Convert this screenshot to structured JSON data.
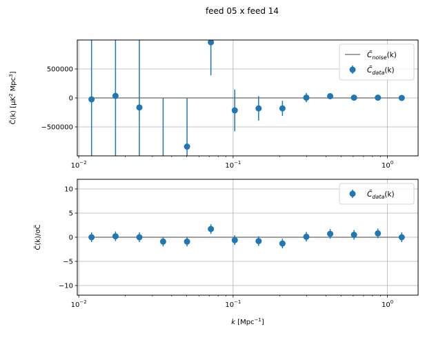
{
  "chart_data": [
    {
      "type": "scatter",
      "panel": "top",
      "title": "feed 05 x feed 14",
      "xlabel": "",
      "ylabel": "C̃(k) [μK² Mpc³]",
      "ylabel_parts": {
        "main": "C̃(k) [μK",
        "sup1": "2",
        "mid": " Mpc",
        "sup2": "3",
        "end": "]"
      },
      "xscale": "log",
      "xlim": [
        0.00978,
        1.58
      ],
      "ylim": [
        -1000000,
        1000000
      ],
      "grid": true,
      "yticks": [
        {
          "value": 500000,
          "label": "500000"
        },
        {
          "value": 0,
          "label": "0"
        },
        {
          "value": -500000,
          "label": "−500000"
        }
      ],
      "xticks": [
        {
          "value": 0.01,
          "base": "10",
          "exp": "−2"
        },
        {
          "value": 0.1,
          "base": "10",
          "exp": "−1"
        },
        {
          "value": 1,
          "base": "10",
          "exp": "0"
        }
      ],
      "legend": {
        "placement": "top-right",
        "entries": [
          {
            "name": "C̃noise(k)",
            "main": "C̃",
            "sub": "noise",
            "tail": "(k)",
            "kind": "line"
          },
          {
            "name": "C̃data(k)",
            "main": "C̃",
            "sub": "data",
            "tail": "(k)",
            "kind": "errorbar"
          }
        ]
      },
      "series": [
        {
          "name": "C̃noise(k)",
          "kind": "line",
          "color": "#808080",
          "x": [
            0.0121,
            1.28
          ],
          "y": [
            0,
            0
          ]
        },
        {
          "name": "C̃data(k)",
          "kind": "errorbar",
          "color": "#1f77b4",
          "x": [
            0.0121,
            0.0173,
            0.0247,
            0.0352,
            0.0503,
            0.0718,
            0.1025,
            0.1463,
            0.2088,
            0.2981,
            0.4255,
            0.6074,
            0.867,
            1.2376
          ],
          "y": [
            -25000,
            35000,
            -165000,
            null,
            -840000,
            960000,
            -215000,
            -180000,
            -180000,
            5000,
            30000,
            5000,
            5000,
            0
          ],
          "yerr": [
            1400000,
            1400000,
            1400000,
            1400000,
            840000,
            570000,
            360000,
            210000,
            130000,
            80000,
            50000,
            30000,
            20000,
            15000
          ]
        }
      ]
    },
    {
      "type": "scatter",
      "panel": "bottom",
      "title": "",
      "xlabel": "k [Mpc⁻¹]",
      "xlabel_parts": {
        "main": "k",
        "rest": " [Mpc",
        "sup": "−1",
        "end": "]"
      },
      "ylabel": "C̃(k)/σC̃",
      "xscale": "log",
      "xlim": [
        0.00978,
        1.58
      ],
      "ylim": [
        -12,
        12
      ],
      "grid": true,
      "yticks": [
        {
          "value": 10,
          "label": "10"
        },
        {
          "value": 5,
          "label": "5"
        },
        {
          "value": 0,
          "label": "0"
        },
        {
          "value": -5,
          "label": "−5"
        },
        {
          "value": -10,
          "label": "−10"
        }
      ],
      "xticks": [
        {
          "value": 0.01,
          "base": "10",
          "exp": "−2"
        },
        {
          "value": 0.1,
          "base": "10",
          "exp": "−1"
        },
        {
          "value": 1,
          "base": "10",
          "exp": "0"
        }
      ],
      "legend": {
        "placement": "top-right",
        "entries": [
          {
            "name": "C̃data(k)",
            "main": "C̃",
            "sub": "data",
            "tail": "(k)",
            "kind": "errorbar"
          }
        ]
      },
      "series": [
        {
          "name": "zero",
          "kind": "line",
          "color": "#808080",
          "x": [
            0.0121,
            1.28
          ],
          "y": [
            0,
            0
          ]
        },
        {
          "name": "C̃data(k)",
          "kind": "errorbar",
          "color": "#1f77b4",
          "x": [
            0.0121,
            0.0173,
            0.0247,
            0.0352,
            0.0503,
            0.0718,
            0.1025,
            0.1463,
            0.2088,
            0.2981,
            0.4255,
            0.6074,
            0.867,
            1.2376
          ],
          "y": [
            0.0,
            0.2,
            0.0,
            -0.9,
            -0.9,
            1.7,
            -0.6,
            -0.8,
            -1.3,
            0.1,
            0.7,
            0.5,
            0.8,
            0.0
          ],
          "yerr": [
            1,
            1,
            1,
            1,
            1,
            1,
            1,
            1,
            1,
            1,
            1,
            1,
            1,
            1
          ]
        }
      ]
    }
  ]
}
